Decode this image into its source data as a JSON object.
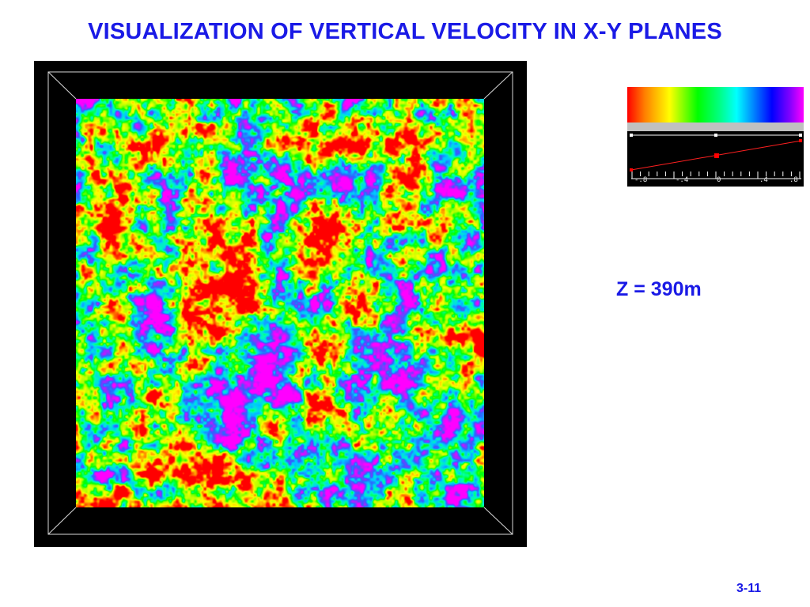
{
  "slide": {
    "title": "VISUALIZATION OF VERTICAL VELOCITY IN X-Y PLANES",
    "z_label": "Z = 390m",
    "page_number": "3-11"
  },
  "colorbar": {
    "colors": [
      "#ff0000",
      "#ff8000",
      "#ffff00",
      "#00ff00",
      "#00ff80",
      "#00ffff",
      "#0080ff",
      "#0000ff",
      "#8000ff",
      "#ff00ff"
    ],
    "tick_labels": [
      "-.8",
      "-.4",
      "0",
      ".4",
      ".8"
    ]
  },
  "field_palette": [
    "#ff0000",
    "#ff8800",
    "#ffff00",
    "#b0ff00",
    "#00ff00",
    "#00ffb0",
    "#00c8ff",
    "#3060ff",
    "#b020ff",
    "#ff00ff"
  ]
}
